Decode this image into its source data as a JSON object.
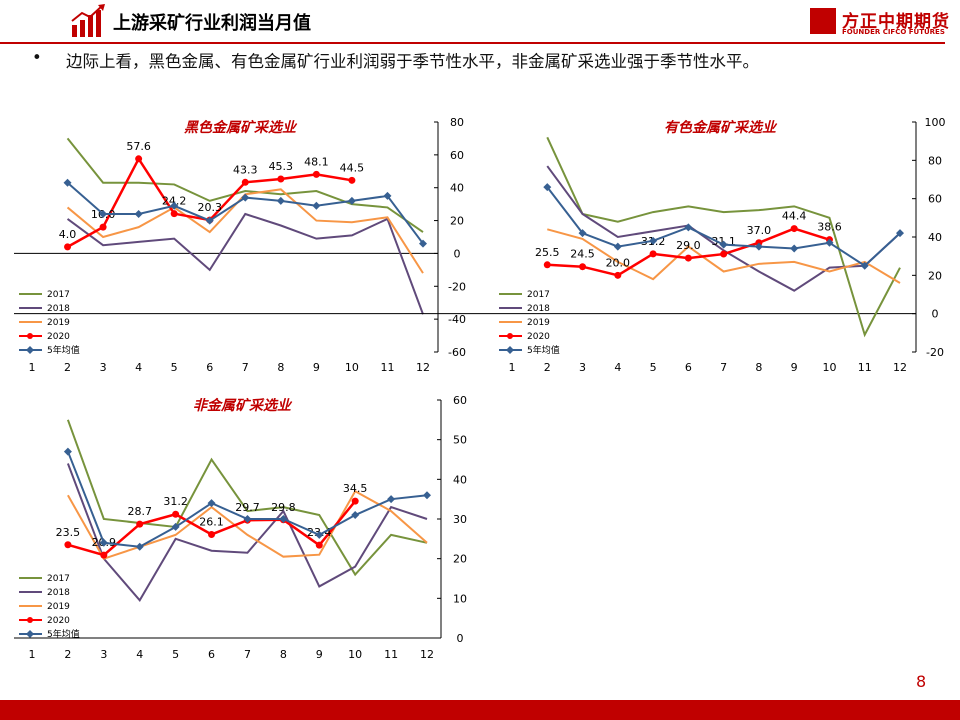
{
  "header": {
    "title": "上游采矿行业利润当月值",
    "logo_cn": "方正中期期货",
    "logo_en": "FOUNDER CIFCO FUTURES"
  },
  "bullet": {
    "symbol": "•",
    "text": "边际上看，黑色金属、有色金属矿行业利润弱于季节性水平，非金属矿采选业强于季节性水平。"
  },
  "page_number": "8",
  "colors": {
    "brand": "#c00000",
    "s2017": "#77933c",
    "s2018": "#604a7b",
    "s2019": "#f79646",
    "s2020": "#ff0000",
    "avg5": "#376092"
  },
  "chart_data": [
    {
      "type": "line",
      "title": "黑色金属矿采选业",
      "categories": [
        "1",
        "2",
        "3",
        "4",
        "5",
        "6",
        "7",
        "8",
        "9",
        "10",
        "11",
        "12"
      ],
      "ylim": [
        -60,
        80
      ],
      "yticks": [
        80,
        60,
        40,
        20,
        0,
        -20,
        -40,
        -60
      ],
      "series": [
        {
          "name": "2017",
          "values": [
            null,
            70,
            43,
            43,
            42,
            32,
            38,
            36,
            38,
            30,
            28,
            13
          ]
        },
        {
          "name": "2018",
          "values": [
            null,
            21,
            5,
            7,
            9,
            -10,
            24,
            17,
            9,
            11,
            21,
            -37
          ]
        },
        {
          "name": "2019",
          "values": [
            null,
            28,
            10,
            16,
            28,
            13,
            36,
            39,
            20,
            19,
            22,
            -12
          ]
        },
        {
          "name": "2020",
          "values": [
            null,
            4.0,
            16.0,
            57.6,
            24.2,
            20.3,
            43.3,
            45.3,
            48.1,
            44.5,
            null,
            null
          ],
          "labels": [
            "",
            "4.0",
            "16.0",
            "57.6",
            "24.2",
            "20.3",
            "43.3",
            "45.3",
            "48.1",
            "44.5",
            "",
            ""
          ]
        },
        {
          "name": "5年均值",
          "values": [
            null,
            43,
            24,
            24,
            29,
            20,
            34,
            32,
            29,
            32,
            35,
            6
          ]
        }
      ]
    },
    {
      "type": "line",
      "title": "有色金属矿采选业",
      "categories": [
        "1",
        "2",
        "3",
        "4",
        "5",
        "6",
        "7",
        "8",
        "9",
        "10",
        "11",
        "12"
      ],
      "ylim": [
        -20,
        100
      ],
      "yticks": [
        100,
        80,
        60,
        40,
        20,
        0,
        -20
      ],
      "series": [
        {
          "name": "2017",
          "values": [
            null,
            92,
            52,
            48,
            53,
            56,
            53,
            54,
            56,
            50,
            -11,
            24
          ]
        },
        {
          "name": "2018",
          "values": [
            null,
            77,
            52,
            40,
            43,
            46,
            33,
            22,
            12,
            24,
            25,
            42
          ]
        },
        {
          "name": "2019",
          "values": [
            null,
            44,
            39,
            27,
            18,
            35,
            22,
            26,
            27,
            22,
            27,
            16
          ]
        },
        {
          "name": "2020",
          "values": [
            null,
            25.5,
            24.5,
            20.0,
            31.2,
            29.0,
            31.1,
            37.0,
            44.4,
            38.6,
            null,
            null
          ],
          "labels": [
            "",
            "25.5",
            "24.5",
            "20.0",
            "31.2",
            "29.0",
            "31.1",
            "37.0",
            "44.4",
            "38.6",
            "",
            ""
          ]
        },
        {
          "name": "5年均值",
          "values": [
            null,
            66,
            42,
            35,
            38,
            45,
            36,
            35,
            34,
            37,
            25,
            42
          ]
        }
      ]
    },
    {
      "type": "line",
      "title": "非金属矿采选业",
      "categories": [
        "1",
        "2",
        "3",
        "4",
        "5",
        "6",
        "7",
        "8",
        "9",
        "10",
        "11",
        "12"
      ],
      "ylim": [
        0,
        60
      ],
      "yticks": [
        60,
        50,
        40,
        30,
        20,
        10,
        0
      ],
      "series": [
        {
          "name": "2017",
          "values": [
            null,
            55,
            30,
            29,
            28,
            45,
            32,
            33,
            31,
            16,
            26,
            24
          ]
        },
        {
          "name": "2018",
          "values": [
            null,
            44,
            20,
            9.5,
            25,
            22,
            21.5,
            32,
            13,
            18,
            33,
            30
          ]
        },
        {
          "name": "2019",
          "values": [
            null,
            36,
            20,
            23,
            26,
            33,
            26,
            20.5,
            21,
            37,
            32,
            24
          ]
        },
        {
          "name": "2020",
          "values": [
            null,
            23.5,
            20.9,
            28.7,
            31.2,
            26.1,
            29.7,
            29.8,
            23.4,
            34.5,
            null,
            null
          ],
          "labels": [
            "",
            "23.5",
            "20.9",
            "28.7",
            "31.2",
            "26.1",
            "29.7",
            "29.8",
            "23.4",
            "34.5",
            "",
            ""
          ]
        },
        {
          "name": "5年均值",
          "values": [
            null,
            47,
            24,
            23,
            28,
            34,
            30,
            30,
            26,
            31,
            35,
            36
          ]
        }
      ]
    }
  ]
}
